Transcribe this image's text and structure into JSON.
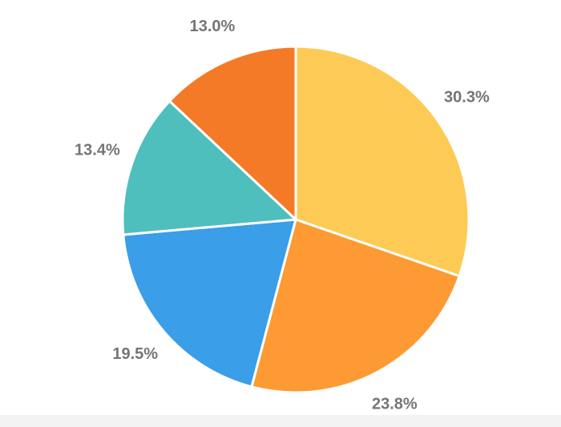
{
  "chart_data": {
    "type": "pie",
    "values": [
      30.3,
      23.8,
      19.5,
      13.4,
      13.0
    ],
    "value_labels": [
      "30.3%",
      "23.8%",
      "19.5%",
      "13.4%",
      "13.0%"
    ],
    "colors": [
      "#fdcb55",
      "#fd9a33",
      "#3a9ee8",
      "#4ebfbd",
      "#f47a27"
    ]
  }
}
